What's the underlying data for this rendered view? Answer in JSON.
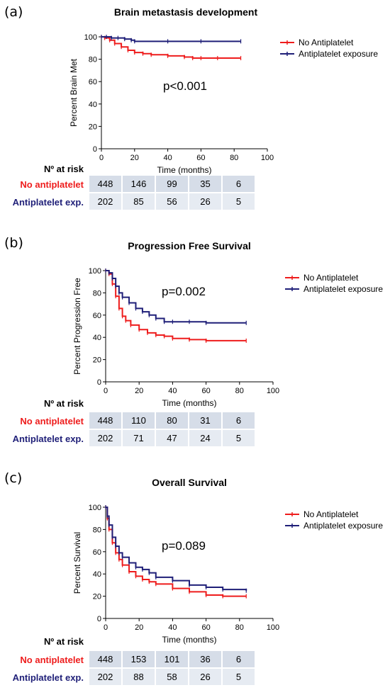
{
  "colors": {
    "no_antiplatelet": "#ee1c1c",
    "antiplatelet": "#1f1f78",
    "table_row1": "#d6dde8",
    "table_row2": "#e6ebf2"
  },
  "chart_data": [
    {
      "panel_label": "(a)",
      "type": "line",
      "title": "Brain metastasis development",
      "xlabel": "Time (months)",
      "ylabel": "Percent Brain Met",
      "xlim": [
        0,
        100
      ],
      "ylim": [
        0,
        100
      ],
      "xticks": [
        0,
        20,
        40,
        60,
        80,
        100
      ],
      "yticks": [
        0,
        20,
        40,
        60,
        80,
        100
      ],
      "annotation": "p<0.001",
      "legend_position": "top-right",
      "series": [
        {
          "name": "No Antiplatelet",
          "color_key": "no_antiplatelet",
          "x": [
            0,
            2,
            5,
            8,
            12,
            16,
            20,
            25,
            30,
            40,
            50,
            55,
            60,
            70,
            84
          ],
          "y": [
            100,
            99,
            97,
            94,
            91,
            88,
            86,
            85,
            84,
            83,
            82,
            81,
            81,
            81,
            81
          ]
        },
        {
          "name": "Antiplatelet exposure",
          "color_key": "antiplatelet",
          "x": [
            0,
            3,
            6,
            10,
            14,
            18,
            20,
            40,
            60,
            84
          ],
          "y": [
            100,
            100,
            99,
            99,
            98,
            97,
            96,
            96,
            96,
            96
          ]
        }
      ],
      "risk_table": {
        "header": "Nº at risk",
        "rows": [
          {
            "label": "No antiplatelet",
            "color_key": "no_antiplatelet",
            "values": [
              "448",
              "146",
              "99",
              "35",
              "6"
            ]
          },
          {
            "label": "Antiplatelet exp.",
            "color_key": "antiplatelet",
            "values": [
              "202",
              "85",
              "56",
              "26",
              "5"
            ]
          }
        ]
      }
    },
    {
      "panel_label": "(b)",
      "type": "line",
      "title": "Progression Free Survival",
      "xlabel": "Time (months)",
      "ylabel": "Percent Progression Free",
      "xlim": [
        0,
        100
      ],
      "ylim": [
        0,
        100
      ],
      "xticks": [
        0,
        20,
        40,
        60,
        80,
        100
      ],
      "yticks": [
        0,
        20,
        40,
        60,
        80,
        100
      ],
      "annotation": "p=0.002",
      "legend_position": "top-right",
      "series": [
        {
          "name": "No Antiplatelet",
          "color_key": "no_antiplatelet",
          "x": [
            0,
            2,
            4,
            6,
            8,
            10,
            12,
            15,
            20,
            25,
            30,
            35,
            40,
            50,
            60,
            84
          ],
          "y": [
            100,
            97,
            88,
            77,
            66,
            59,
            55,
            51,
            47,
            44,
            42,
            41,
            39,
            38,
            37,
            37
          ]
        },
        {
          "name": "Antiplatelet exposure",
          "color_key": "antiplatelet",
          "x": [
            0,
            2,
            4,
            6,
            8,
            10,
            14,
            18,
            22,
            26,
            30,
            35,
            40,
            50,
            60,
            84
          ],
          "y": [
            100,
            98,
            93,
            86,
            80,
            76,
            71,
            66,
            63,
            60,
            57,
            54,
            54,
            54,
            53,
            53
          ]
        }
      ],
      "risk_table": {
        "header": "Nº at risk",
        "rows": [
          {
            "label": "No antiplatelet",
            "color_key": "no_antiplatelet",
            "values": [
              "448",
              "110",
              "80",
              "31",
              "6"
            ]
          },
          {
            "label": "Antiplatelet exp.",
            "color_key": "antiplatelet",
            "values": [
              "202",
              "71",
              "47",
              "24",
              "5"
            ]
          }
        ]
      }
    },
    {
      "panel_label": "(c)",
      "type": "line",
      "title": "Overall Survival",
      "xlabel": "Time (months)",
      "ylabel": "Percent Survival",
      "xlim": [
        0,
        100
      ],
      "ylim": [
        0,
        100
      ],
      "xticks": [
        0,
        20,
        40,
        60,
        80,
        100
      ],
      "yticks": [
        0,
        20,
        40,
        60,
        80,
        100
      ],
      "annotation": "p=0.089",
      "legend_position": "top-right",
      "series": [
        {
          "name": "No Antiplatelet",
          "color_key": "no_antiplatelet",
          "x": [
            0,
            1,
            2,
            4,
            6,
            8,
            10,
            14,
            18,
            22,
            26,
            30,
            40,
            50,
            60,
            70,
            84
          ],
          "y": [
            100,
            90,
            80,
            68,
            59,
            53,
            48,
            42,
            38,
            35,
            33,
            31,
            27,
            24,
            21,
            20,
            20
          ]
        },
        {
          "name": "Antiplatelet exposure",
          "color_key": "antiplatelet",
          "x": [
            0,
            1,
            2,
            4,
            6,
            8,
            10,
            14,
            18,
            22,
            26,
            30,
            40,
            50,
            60,
            70,
            84
          ],
          "y": [
            100,
            92,
            84,
            73,
            65,
            59,
            55,
            50,
            46,
            44,
            41,
            37,
            34,
            30,
            28,
            26,
            25
          ]
        }
      ],
      "risk_table": {
        "header": "Nº at risk",
        "rows": [
          {
            "label": "No antiplatelet",
            "color_key": "no_antiplatelet",
            "values": [
              "448",
              "153",
              "101",
              "36",
              "6"
            ]
          },
          {
            "label": "Antiplatelet exp.",
            "color_key": "antiplatelet",
            "values": [
              "202",
              "88",
              "58",
              "26",
              "5"
            ]
          }
        ]
      }
    }
  ]
}
